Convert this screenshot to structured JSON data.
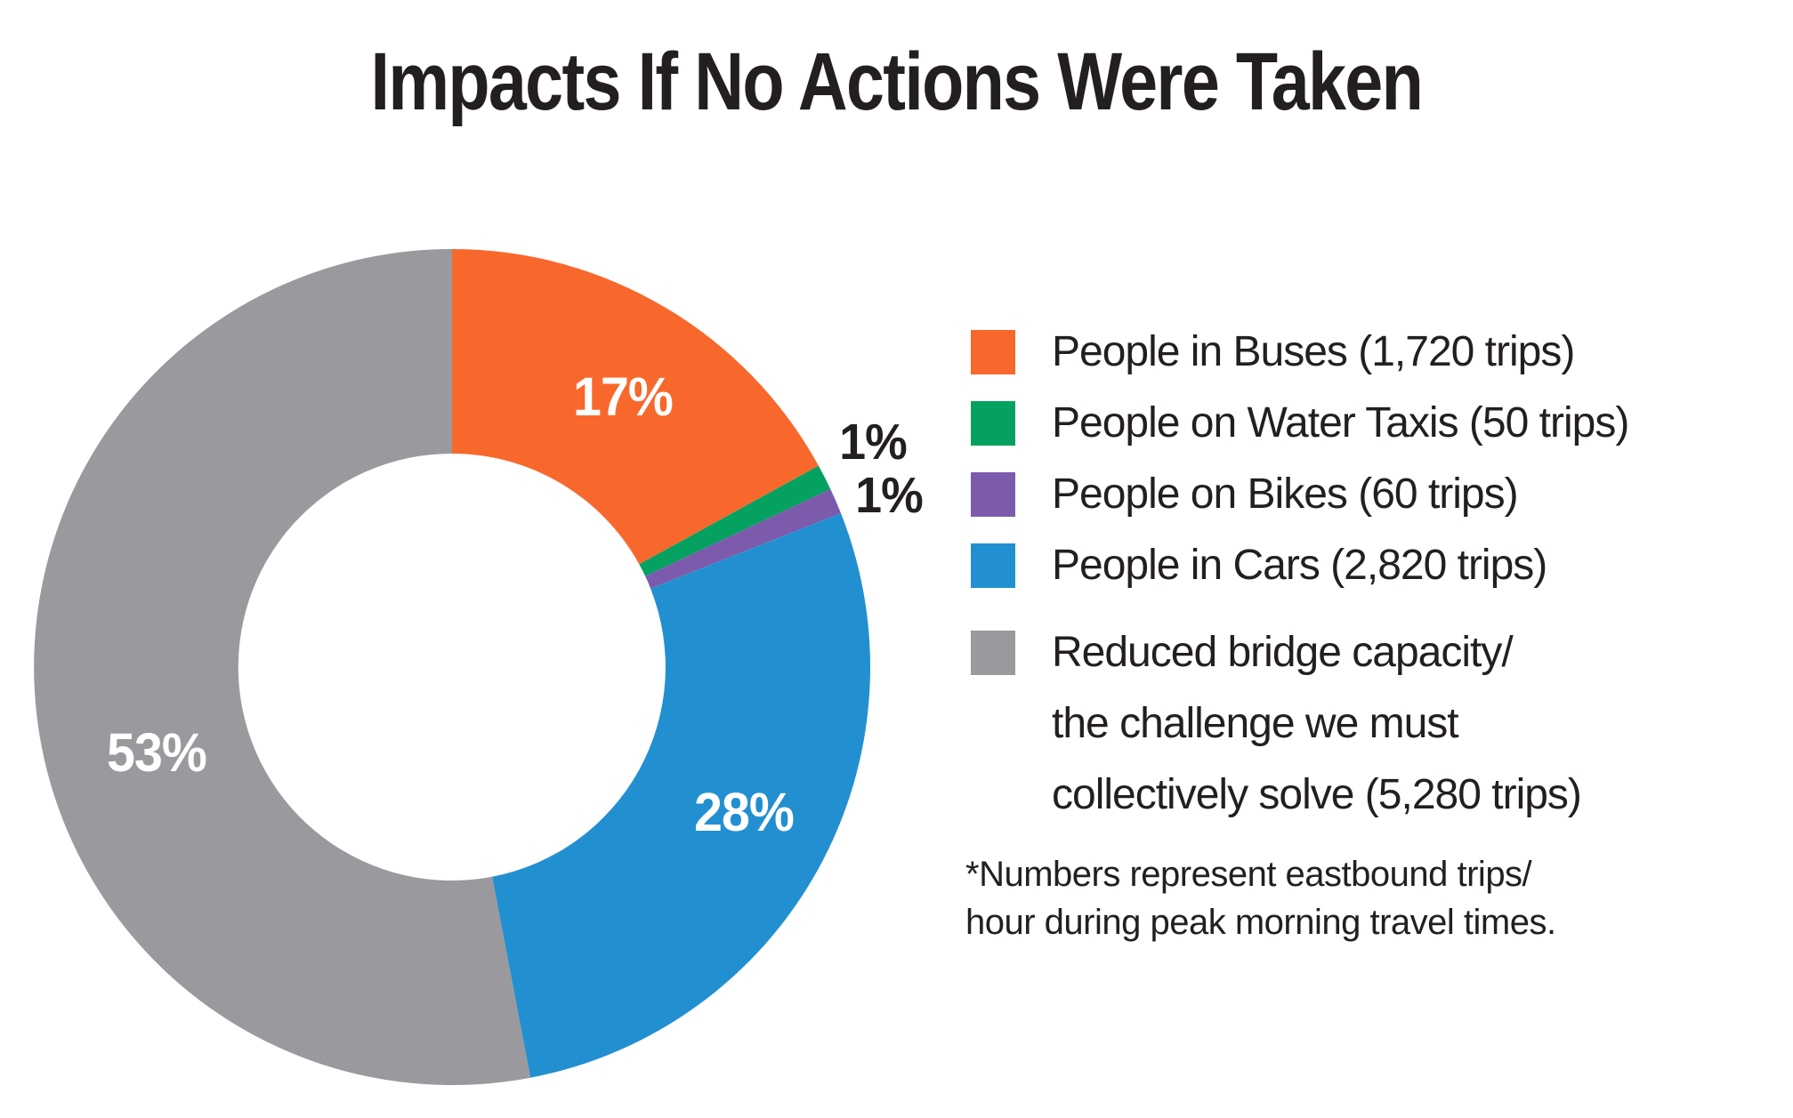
{
  "title": "Impacts If No Actions Were Taken",
  "colors": {
    "background": "#FFFFFF",
    "text": "#231F20",
    "inside_label_text": "#FFFFFF",
    "outside_label_text": "#231F20"
  },
  "chart_data": {
    "type": "pie",
    "subtype": "donut",
    "title": "Impacts If No Actions Were Taken",
    "direction": "clockwise",
    "start_angle_deg": 0,
    "legend_position": "right",
    "slices": [
      {
        "id": "buses",
        "label": "People in Buses",
        "trips": 1720,
        "trips_label": "1,720 trips",
        "pct": 17,
        "pct_label": "17%",
        "color": "#F8682C",
        "label_placement": "inside"
      },
      {
        "id": "water-taxis",
        "label": "People on Water Taxis",
        "trips": 50,
        "trips_label": "50 trips",
        "pct": 1,
        "pct_label": "1%",
        "color": "#05A160",
        "label_placement": "outside"
      },
      {
        "id": "bikes",
        "label": "People on Bikes",
        "trips": 60,
        "trips_label": "60 trips",
        "pct": 1,
        "pct_label": "1%",
        "color": "#7C5BAD",
        "label_placement": "outside"
      },
      {
        "id": "cars",
        "label": "People in Cars",
        "trips": 2820,
        "trips_label": "2,820 trips",
        "pct": 28,
        "pct_label": "28%",
        "color": "#2290D0",
        "label_placement": "inside"
      },
      {
        "id": "bridge",
        "label": "Reduced bridge capacity/the challenge we must collectively solve",
        "trips": 5280,
        "trips_label": "5,280 trips",
        "pct": 53,
        "pct_label": "53%",
        "color": "#9A999D",
        "label_placement": "inside"
      }
    ]
  },
  "legend": {
    "items": [
      {
        "id": "buses",
        "color": "#F8682C",
        "lines": [
          "People in Buses (1,720 trips)"
        ]
      },
      {
        "id": "water-taxis",
        "color": "#05A160",
        "lines": [
          "People on Water Taxis (50 trips)"
        ]
      },
      {
        "id": "bikes",
        "color": "#7C5BAD",
        "lines": [
          "People on Bikes (60 trips)"
        ]
      },
      {
        "id": "cars",
        "color": "#2290D0",
        "lines": [
          "People in Cars (2,820 trips)"
        ]
      },
      {
        "id": "bridge",
        "color": "#9A999D",
        "lines": [
          "Reduced bridge capacity/",
          "the challenge we must",
          "collectively solve (5,280 trips)"
        ]
      }
    ]
  },
  "footnote": {
    "text": "*Numbers represent eastbound trips/\nhour during peak morning travel times."
  }
}
